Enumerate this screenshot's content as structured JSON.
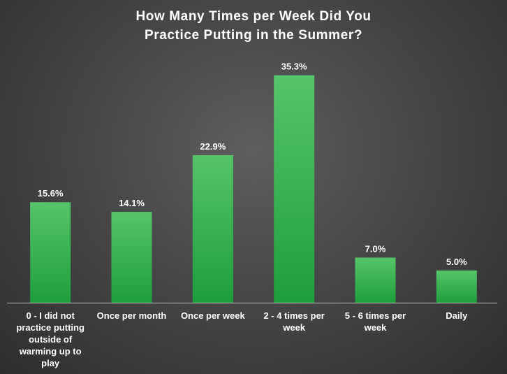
{
  "chart_data": {
    "type": "bar",
    "title_lines": [
      "How Many Times per Week Did You",
      "Practice Putting in the Summer?"
    ],
    "categories": [
      "0 - I did not practice putting outside of warming up to play",
      "Once per month",
      "Once per week",
      "2 - 4 times per week",
      "5 - 6 times per week",
      "Daily"
    ],
    "values": [
      15.6,
      14.1,
      22.9,
      35.3,
      7.0,
      5.0
    ],
    "value_labels": [
      "15.6%",
      "14.1%",
      "22.9%",
      "35.3%",
      "7.0%",
      "5.0%"
    ],
    "ylim": [
      0,
      37
    ],
    "grid": false,
    "legend": "none",
    "colors": {
      "bar_top": "#56c46a",
      "bar_bottom": "#1f9e3e",
      "axis": "#bfbfbf",
      "text": "#ffffff"
    }
  }
}
